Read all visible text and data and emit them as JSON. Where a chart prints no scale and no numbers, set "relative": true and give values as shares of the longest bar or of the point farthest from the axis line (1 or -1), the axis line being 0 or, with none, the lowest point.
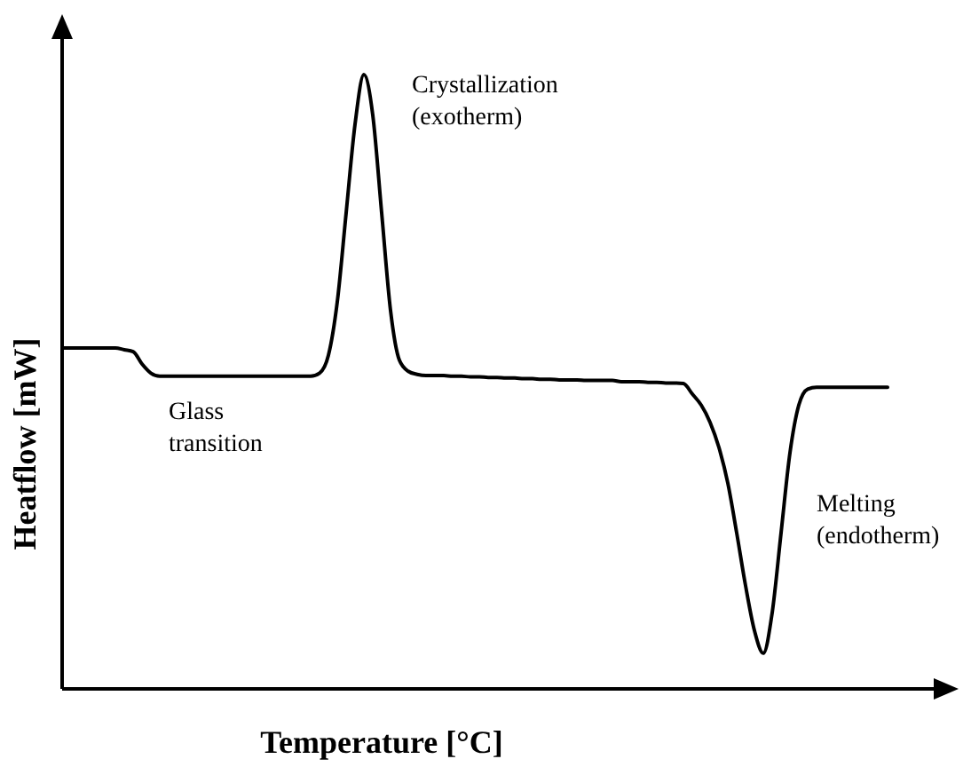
{
  "chart_data": {
    "type": "line",
    "relative": true,
    "xlabel": "Temperature [°C]",
    "ylabel": "Heatflow [mW]",
    "annotations": [
      "Crystallization\n(exotherm)",
      "Glass\ntransition",
      "Melting\n(endotherm)"
    ],
    "categories": [
      null,
      null,
      null,
      null,
      null,
      null,
      null,
      null,
      null,
      null,
      null,
      null,
      null,
      null,
      null,
      null,
      null,
      null,
      null,
      null,
      null,
      null,
      null,
      null,
      null,
      null,
      null,
      null,
      null,
      null,
      null,
      null,
      null,
      null,
      null,
      null,
      null,
      null,
      null,
      null,
      null,
      null,
      null,
      null,
      null,
      null,
      null,
      null,
      null,
      null,
      null,
      null,
      null,
      null,
      null,
      null,
      null,
      null,
      null,
      null,
      null,
      null,
      null,
      null,
      null,
      null,
      null,
      null,
      null,
      null,
      null,
      null,
      null,
      null,
      null,
      null,
      null,
      null,
      null,
      null,
      null,
      null,
      null,
      null,
      null,
      null,
      null,
      null,
      null,
      null,
      null,
      null,
      null,
      null
    ],
    "series": [
      {
        "color": "#000000",
        "values": [
          0.555,
          0.555,
          0.555,
          0.555,
          0.555,
          0.555,
          0.555,
          0.552,
          0.549,
          0.529,
          0.514,
          0.509,
          0.509,
          0.509,
          0.509,
          0.509,
          0.509,
          0.509,
          0.509,
          0.509,
          0.509,
          0.509,
          0.509,
          0.509,
          0.509,
          0.509,
          0.509,
          0.509,
          0.509,
          0.514,
          0.543,
          0.63,
          0.775,
          0.919,
          1,
          0.934,
          0.775,
          0.616,
          0.535,
          0.517,
          0.512,
          0.51,
          0.51,
          0.51,
          0.509,
          0.509,
          0.508,
          0.508,
          0.507,
          0.507,
          0.506,
          0.506,
          0.505,
          0.505,
          0.504,
          0.504,
          0.503,
          0.503,
          0.503,
          0.502,
          0.502,
          0.502,
          0.502,
          0.5,
          0.5,
          0.5,
          0.499,
          0.499,
          0.498,
          0.498,
          0.497,
          0.48,
          0.462,
          0.434,
          0.393,
          0.335,
          0.254,
          0.168,
          0.095,
          0.058,
          0.124,
          0.254,
          0.384,
          0.462,
          0.488,
          0.491,
          0.491,
          0.491,
          0.491,
          0.491,
          0.491,
          0.491,
          0.491,
          0.491
        ]
      }
    ],
    "marker": "none",
    "line_style": "solid"
  }
}
